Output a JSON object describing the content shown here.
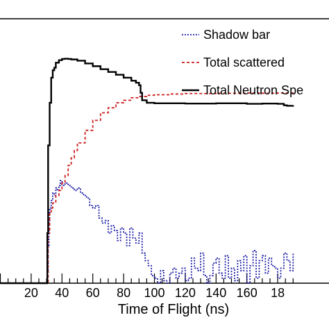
{
  "chart_data": {
    "type": "line",
    "xlabel": "Time of Flight  (ns)",
    "ylabel": "",
    "title": "",
    "xlim": [
      0,
      190
    ],
    "ylim": [
      0,
      1.0
    ],
    "x_ticks": [
      "20",
      "40",
      "60",
      "80",
      "100",
      "120",
      "140",
      "160",
      "18"
    ],
    "grid": false,
    "legend_position": "top-right",
    "series": [
      {
        "name": "Shadow bar",
        "style": "dotted",
        "color": "#1a1aa6",
        "x": [
          0,
          30,
          30.5,
          31,
          31.5,
          32,
          33,
          34,
          35,
          36,
          37,
          38,
          39,
          40,
          42,
          44,
          46,
          48,
          50,
          52,
          54,
          56,
          58,
          60,
          62,
          64,
          66,
          68,
          70,
          72,
          74,
          76,
          78,
          80,
          82,
          84,
          86,
          88,
          90,
          92,
          94,
          96,
          98,
          100,
          102,
          104,
          106,
          108,
          110,
          112,
          114,
          116,
          118,
          120,
          122,
          124,
          126,
          128,
          130,
          132,
          134,
          136,
          138,
          140,
          142,
          144,
          146,
          148,
          150,
          152,
          154,
          156,
          158,
          160,
          162,
          164,
          166,
          168,
          170,
          172,
          174,
          176,
          178,
          180,
          182,
          184,
          186,
          188,
          190
        ],
        "y": [
          0,
          0,
          0.04,
          0.15,
          0.25,
          0.3,
          0.33,
          0.36,
          0.35,
          0.38,
          0.37,
          0.39,
          0.41,
          0.39,
          0.4,
          0.39,
          0.38,
          0.37,
          0.38,
          0.36,
          0.35,
          0.34,
          0.31,
          0.3,
          0.31,
          0.26,
          0.24,
          0.25,
          0.2,
          0.23,
          0.21,
          0.17,
          0.22,
          0.2,
          0.15,
          0.22,
          0.18,
          0.16,
          0.2,
          0.12,
          0.09,
          0.07,
          0.03,
          0.02,
          0.0,
          0.05,
          0.01,
          0.0,
          0.04,
          0.06,
          0.02,
          0.04,
          0.06,
          0.01,
          0.02,
          0.1,
          0.06,
          0.05,
          0.12,
          0.03,
          0.0,
          0.03,
          0.08,
          0.1,
          0.04,
          0.02,
          0.11,
          0.02,
          0.06,
          0.01,
          0.09,
          0.05,
          0.11,
          0.0,
          0.07,
          0.13,
          0.02,
          0.09,
          0.11,
          0.04,
          0.1,
          0.07,
          0.06,
          0.02,
          0.06,
          0.12,
          0.09,
          0.05,
          0.12
        ]
      },
      {
        "name": "Total scattered",
        "style": "dashed",
        "color": "#cc1f1f",
        "x": [
          0,
          30,
          31,
          32,
          33,
          34,
          36,
          38,
          40,
          42,
          44,
          46,
          48,
          50,
          55,
          60,
          65,
          70,
          75,
          80,
          85,
          90,
          95,
          100,
          110,
          120,
          130,
          140,
          150,
          160,
          170,
          180,
          190
        ],
        "y": [
          0,
          0,
          0.2,
          0.28,
          0.3,
          0.32,
          0.35,
          0.37,
          0.4,
          0.43,
          0.47,
          0.5,
          0.53,
          0.56,
          0.61,
          0.65,
          0.68,
          0.7,
          0.72,
          0.73,
          0.74,
          0.745,
          0.75,
          0.752,
          0.755,
          0.757,
          0.757,
          0.758,
          0.758,
          0.759,
          0.758,
          0.759,
          0.755
        ]
      },
      {
        "name": "Total Neutron Spe",
        "style": "solid",
        "color": "#000000",
        "x": [
          0,
          30,
          30.5,
          31,
          32,
          33,
          34,
          35,
          36,
          38,
          40,
          42,
          44,
          46,
          50,
          55,
          60,
          65,
          70,
          75,
          80,
          85,
          88,
          90,
          91,
          92,
          95,
          100,
          110,
          120,
          130,
          140,
          150,
          160,
          170,
          180,
          184,
          186,
          190
        ],
        "y": [
          0,
          0,
          0.2,
          0.55,
          0.72,
          0.82,
          0.85,
          0.86,
          0.88,
          0.89,
          0.895,
          0.896,
          0.895,
          0.893,
          0.888,
          0.877,
          0.866,
          0.854,
          0.843,
          0.832,
          0.82,
          0.808,
          0.8,
          0.79,
          0.76,
          0.73,
          0.72,
          0.718,
          0.718,
          0.717,
          0.717,
          0.718,
          0.718,
          0.716,
          0.717,
          0.716,
          0.71,
          0.708,
          0.71
        ]
      }
    ]
  }
}
